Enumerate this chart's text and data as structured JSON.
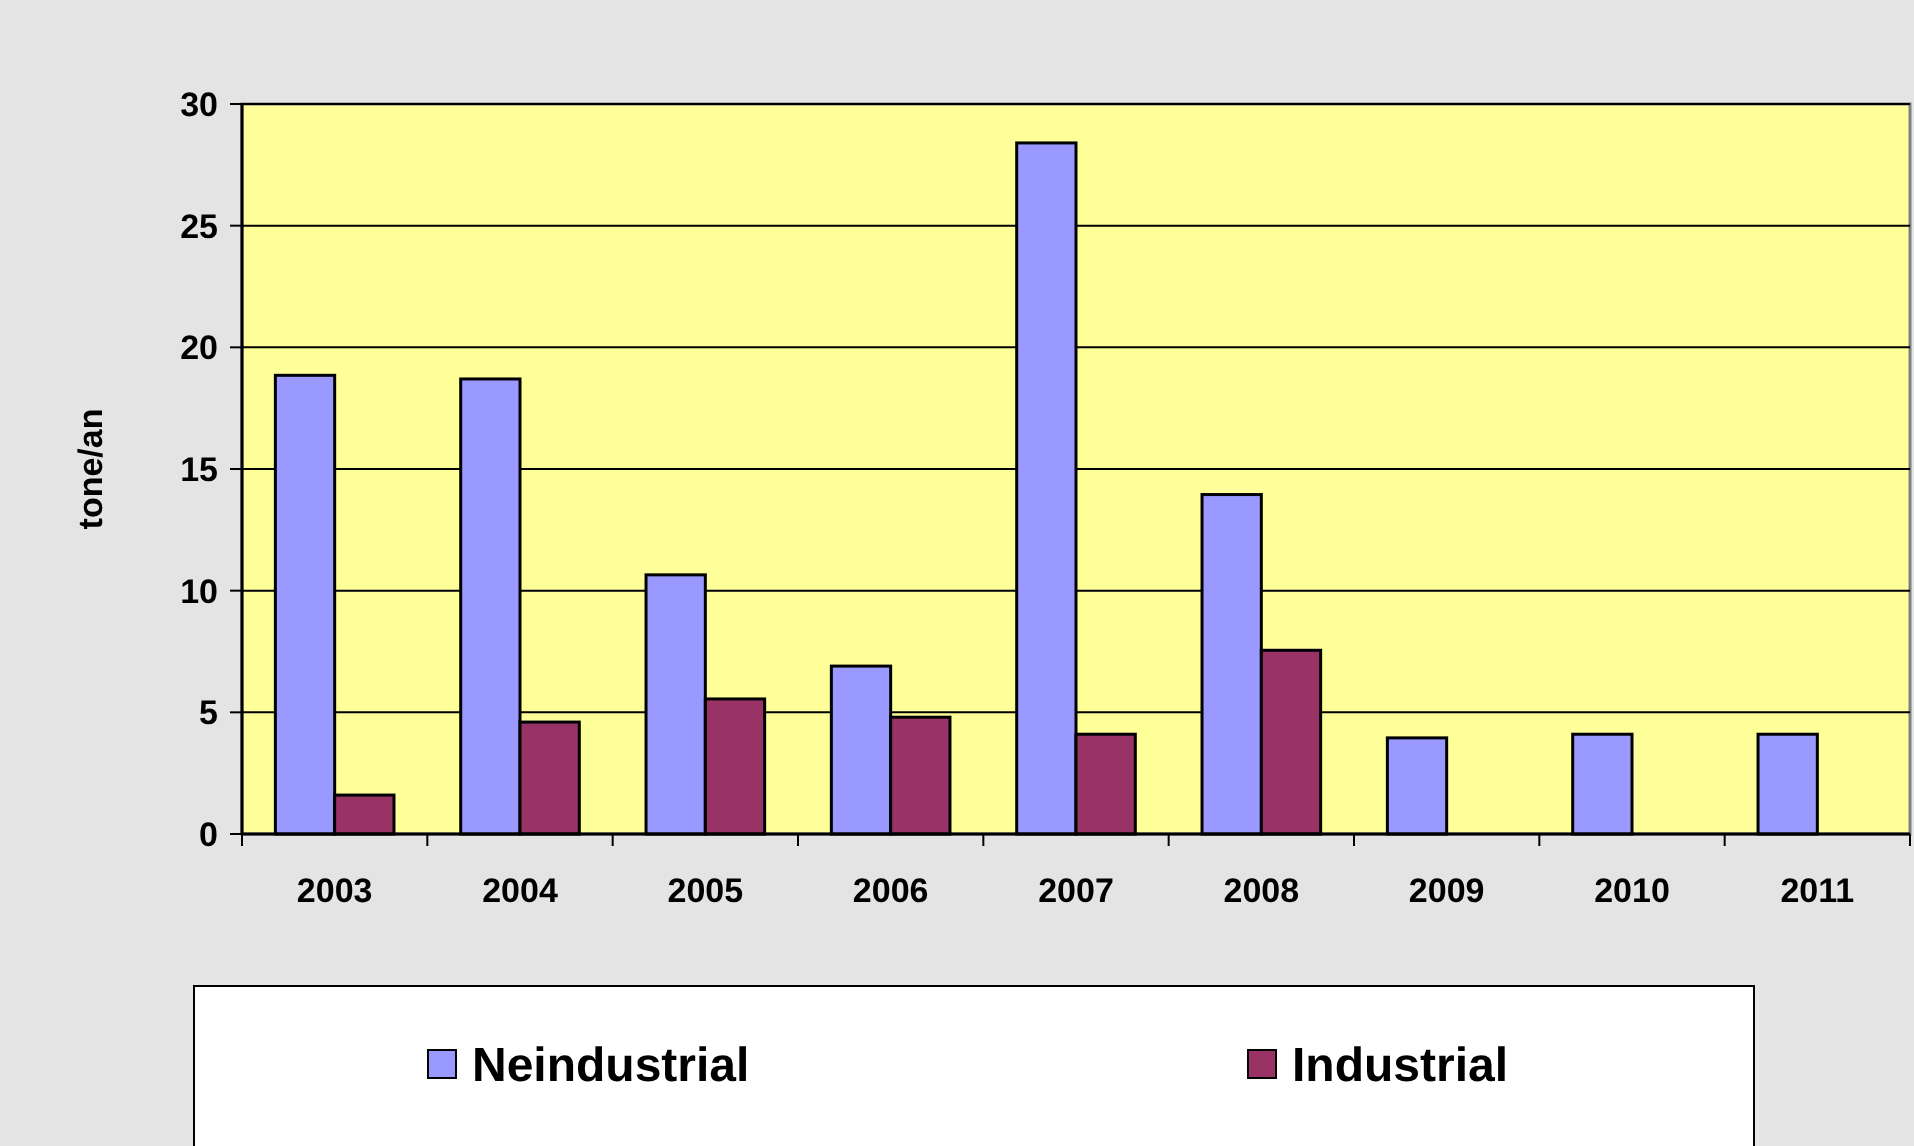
{
  "chart_data": {
    "type": "bar",
    "ylabel": "tone/an",
    "categories": [
      "2003",
      "2004",
      "2005",
      "2006",
      "2007",
      "2008",
      "2009",
      "2010",
      "2011"
    ],
    "series": [
      {
        "name": "Neindustrial",
        "color": "#9999ff",
        "values": [
          18.85,
          18.7,
          10.65,
          6.9,
          28.4,
          13.95,
          3.95,
          4.1,
          4.1
        ]
      },
      {
        "name": "Industrial",
        "color": "#993366",
        "values": [
          1.6,
          4.6,
          5.55,
          4.8,
          4.1,
          7.55,
          null,
          null,
          null
        ]
      }
    ],
    "ylim": [
      0,
      30
    ],
    "yticks": [
      0,
      5,
      10,
      15,
      20,
      25,
      30
    ],
    "grid": "y",
    "legend": "bottom"
  }
}
